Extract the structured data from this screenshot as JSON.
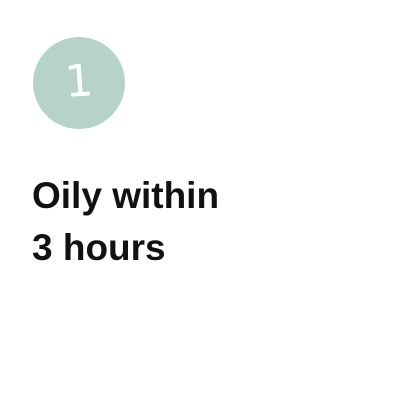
{
  "step": {
    "number": "1",
    "badge_color": "#b7d3c9"
  },
  "headline": {
    "line1": "Oily within",
    "line2": "3 hours"
  }
}
